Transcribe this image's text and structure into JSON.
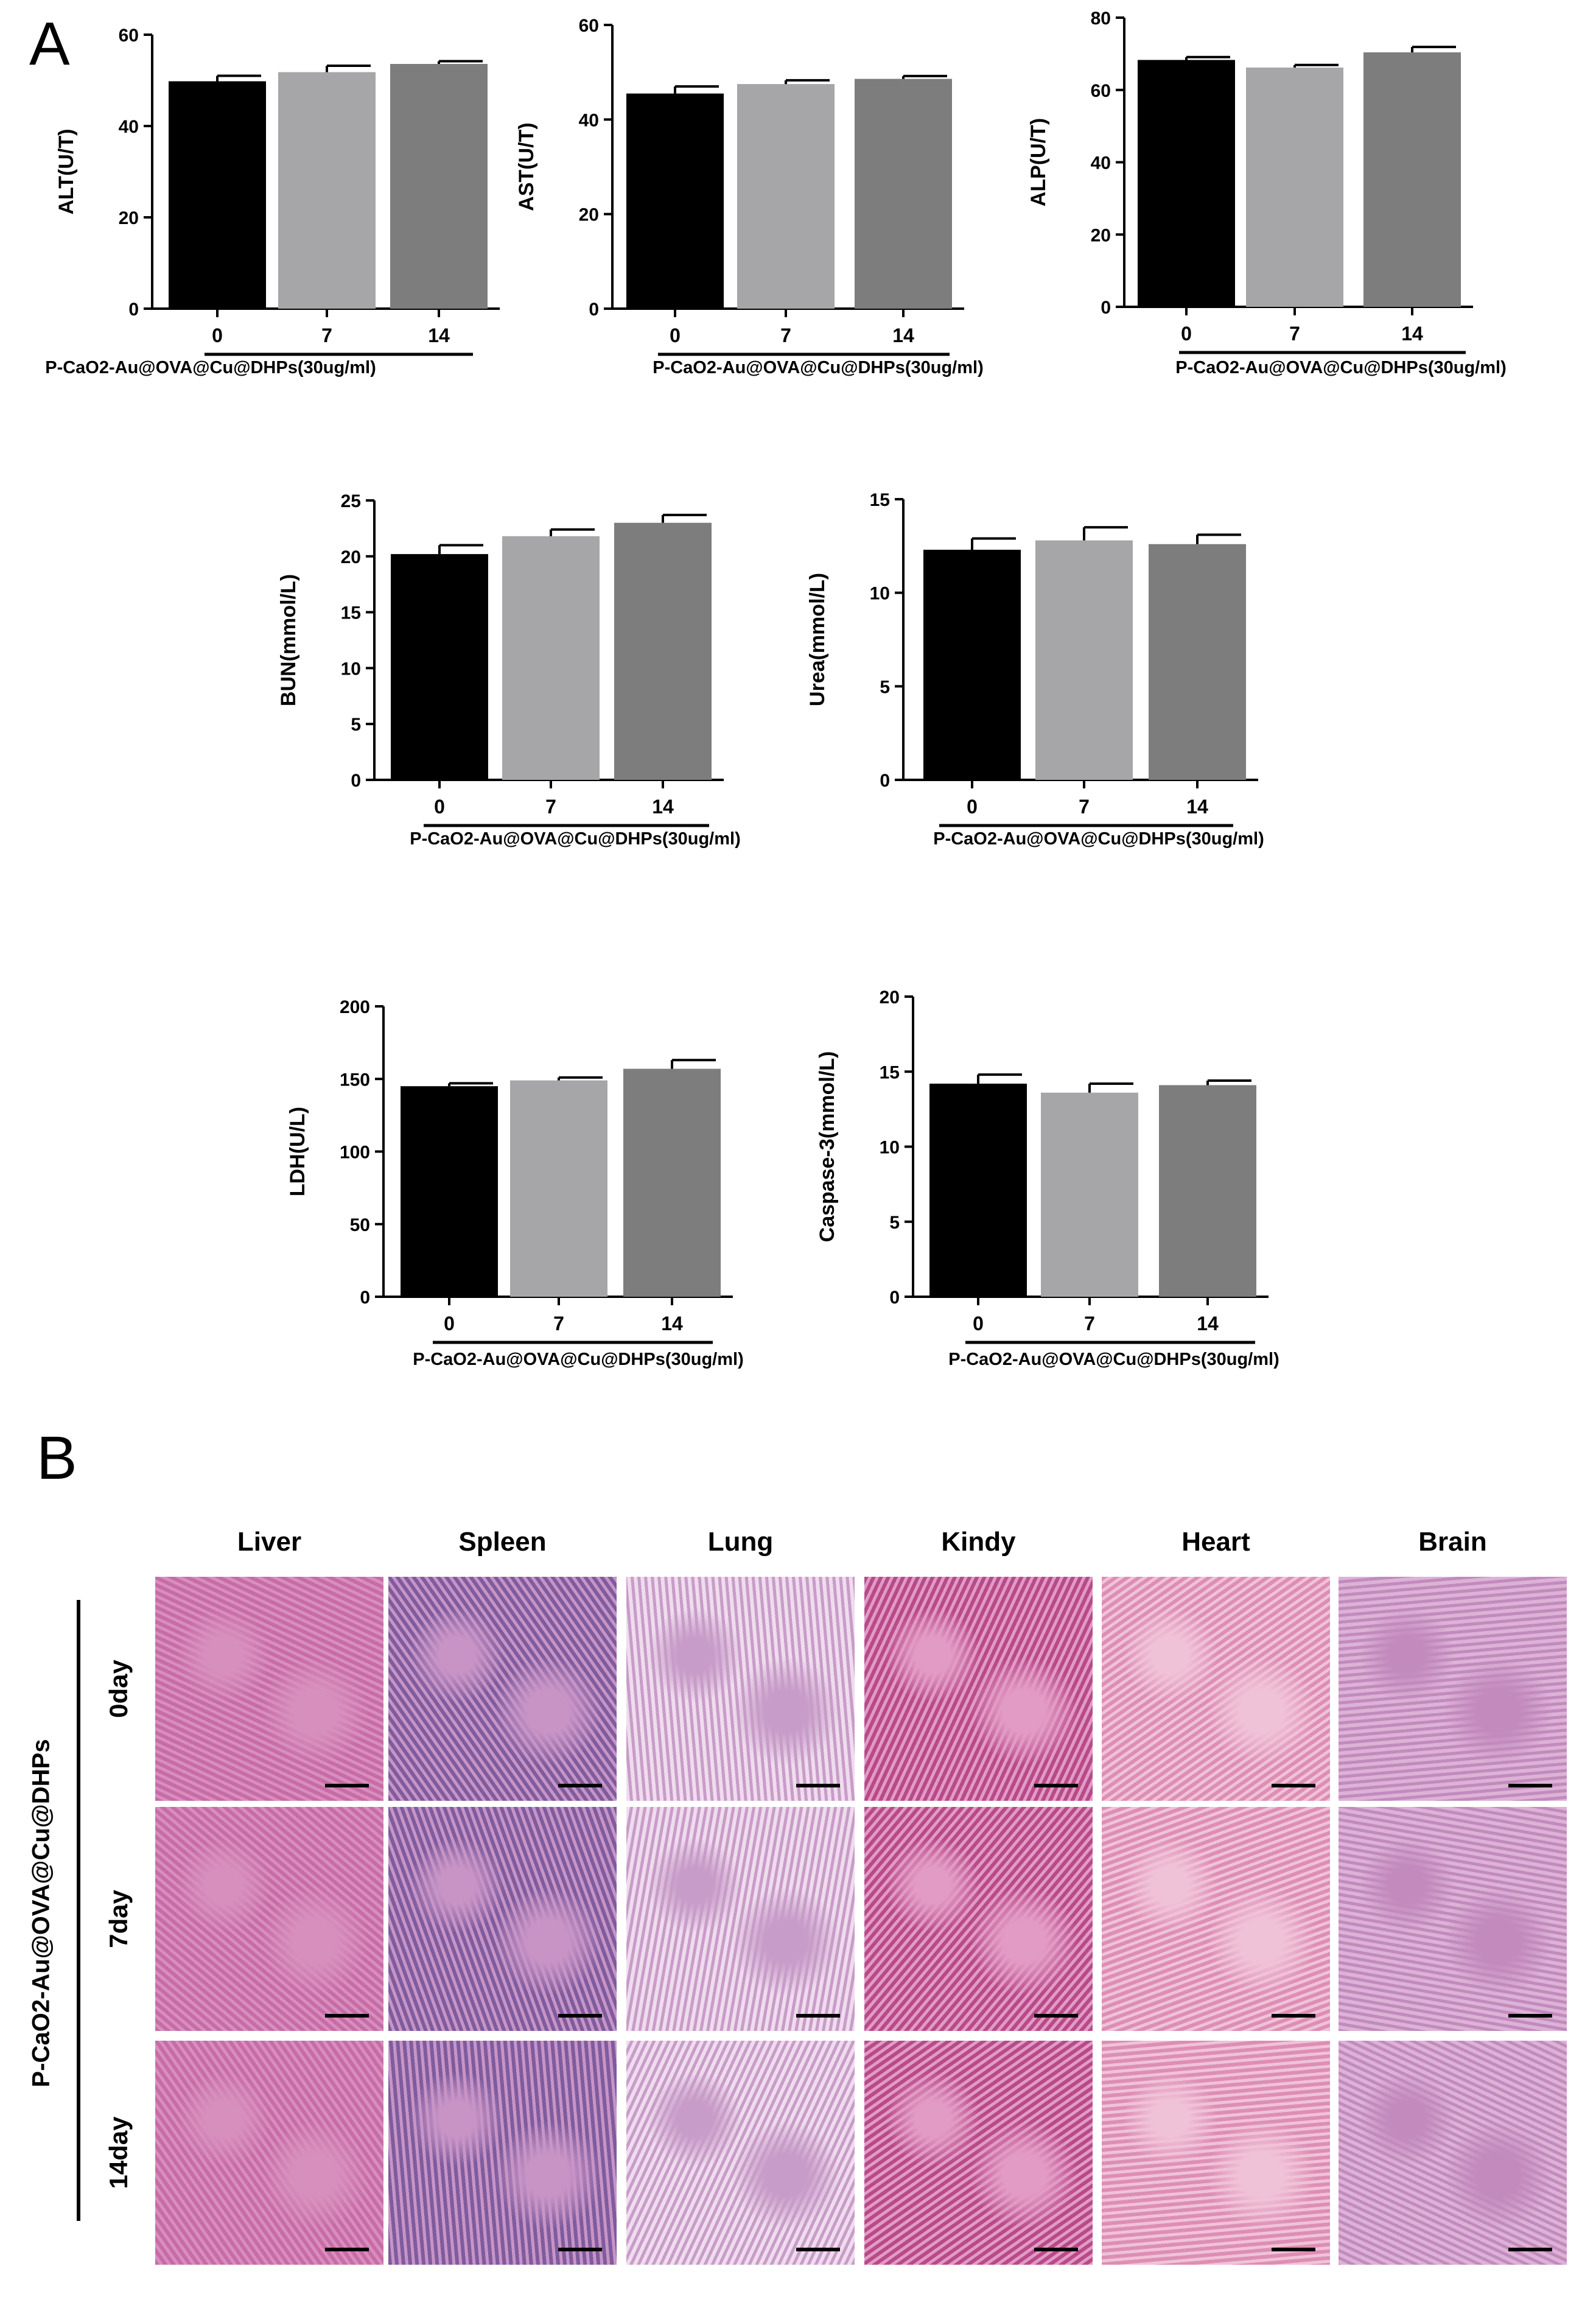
{
  "panels": {
    "a_label": "A",
    "b_label": "B"
  },
  "colors": {
    "bar_0": "#000000",
    "bar_7": "#a6a6a8",
    "bar_14": "#7d7d7d"
  },
  "chart_data": [
    {
      "type": "bar",
      "ylabel": "ALT(U/T)",
      "xlabel": "P-CaO2-Au@OVA@Cu@DHPs(30ug/ml)",
      "categories": [
        "0",
        "7",
        "14"
      ],
      "values": [
        49.8,
        51.8,
        53.6
      ],
      "errors": [
        1.2,
        1.4,
        0.6
      ],
      "ylim": [
        0,
        60
      ],
      "yticks": [
        "0",
        "20",
        "40",
        "60"
      ]
    },
    {
      "type": "bar",
      "ylabel": "AST(U/T)",
      "xlabel": "P-CaO2-Au@OVA@Cu@DHPs(30ug/ml)",
      "categories": [
        "0",
        "7",
        "14"
      ],
      "values": [
        45.5,
        47.5,
        48.6
      ],
      "errors": [
        1.5,
        0.8,
        0.6
      ],
      "ylim": [
        0,
        60
      ],
      "yticks": [
        "0",
        "20",
        "40",
        "60"
      ]
    },
    {
      "type": "bar",
      "ylabel": "ALP(U/T)",
      "xlabel": "P-CaO2-Au@OVA@Cu@DHPs(30ug/ml)",
      "categories": [
        "0",
        "7",
        "14"
      ],
      "values": [
        68.3,
        66.2,
        70.4
      ],
      "errors": [
        0.8,
        0.7,
        1.5
      ],
      "ylim": [
        0,
        80
      ],
      "yticks": [
        "0",
        "20",
        "40",
        "60",
        "80"
      ]
    },
    {
      "type": "bar",
      "ylabel": "BUN(mmol/L)",
      "xlabel": "P-CaO2-Au@OVA@Cu@DHPs(30ug/ml)",
      "categories": [
        "0",
        "7",
        "14"
      ],
      "values": [
        20.2,
        21.8,
        23.0
      ],
      "errors": [
        0.8,
        0.6,
        0.7
      ],
      "ylim": [
        0,
        25
      ],
      "yticks": [
        "0",
        "5",
        "10",
        "15",
        "20",
        "25"
      ]
    },
    {
      "type": "bar",
      "ylabel": "Urea(mmol/L)",
      "xlabel": "P-CaO2-Au@OVA@Cu@DHPs(30ug/ml)",
      "categories": [
        "0",
        "7",
        "14"
      ],
      "values": [
        12.3,
        12.8,
        12.6
      ],
      "errors": [
        0.6,
        0.7,
        0.5
      ],
      "ylim": [
        0,
        15
      ],
      "yticks": [
        "0",
        "5",
        "10",
        "15"
      ]
    },
    {
      "type": "bar",
      "ylabel": "LDH(U/L)",
      "xlabel": "P-CaO2-Au@OVA@Cu@DHPs(30ug/ml)",
      "categories": [
        "0",
        "7",
        "14"
      ],
      "values": [
        145,
        149,
        157
      ],
      "errors": [
        2,
        2,
        6
      ],
      "ylim": [
        0,
        200
      ],
      "yticks": [
        "0",
        "50",
        "100",
        "150",
        "200"
      ]
    },
    {
      "type": "bar",
      "ylabel": "Caspase-3(mmol/L)",
      "xlabel": "P-CaO2-Au@OVA@Cu@DHPs(30ug/ml)",
      "categories": [
        "0",
        "7",
        "14"
      ],
      "values": [
        14.2,
        13.6,
        14.1
      ],
      "errors": [
        0.6,
        0.6,
        0.3
      ],
      "ylim": [
        0,
        20
      ],
      "yticks": [
        "0",
        "5",
        "10",
        "15",
        "20"
      ]
    }
  ],
  "histology": {
    "organs": [
      "Liver",
      "Spleen",
      "Lung",
      "Kindy",
      "Heart",
      "Brain"
    ],
    "days": [
      "0day",
      "7day",
      "14day"
    ],
    "group": "P-CaO2-Au@OVA@Cu@DHPs",
    "tile_colors": {
      "Liver": [
        "#c86ba6",
        "#d78fbe"
      ],
      "Spleen": [
        "#7e5c9e",
        "#c894c6"
      ],
      "Lung": [
        "#efdcee",
        "#c89cc8"
      ],
      "Kindy": [
        "#b84a8a",
        "#e29bc4"
      ],
      "Heart": [
        "#dd8eb4",
        "#f0c2d8"
      ],
      "Brain": [
        "#dcb2d6",
        "#c28abd"
      ]
    }
  }
}
